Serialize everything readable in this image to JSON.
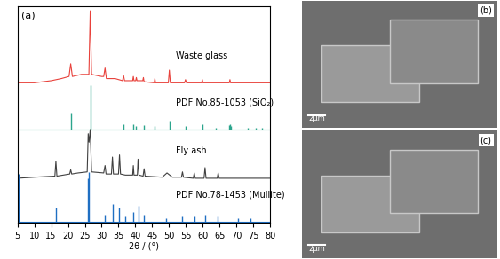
{
  "chart_data": {
    "type": "line",
    "panel_label": "(a)",
    "xlabel": "2θ / (°)",
    "xlim": [
      5,
      80
    ],
    "xticks": [
      5,
      10,
      15,
      20,
      25,
      30,
      35,
      40,
      45,
      50,
      55,
      60,
      65,
      70,
      75,
      80
    ],
    "ylim": [
      0,
      102
    ],
    "yticks": [],
    "tick_labels": "x",
    "grid": false,
    "series": [
      {
        "name": "Waste glass",
        "type": "line",
        "color": "#e8413b",
        "x": [
          5,
          10,
          15,
          18,
          20.3,
          20.8,
          21.3,
          24,
          26.2,
          26.6,
          27.0,
          30,
          30.6,
          31.0,
          31.4,
          34,
          36.2,
          36.5,
          36.8,
          39.2,
          39.4,
          39.6,
          40.1,
          40.3,
          40.5,
          42.2,
          42.4,
          42.6,
          45.6,
          45.8,
          46.0,
          49.8,
          50.1,
          50.4,
          54.6,
          54.9,
          55.2,
          59.7,
          59.9,
          60.1,
          64,
          67.9,
          68.1,
          68.3,
          75,
          80
        ],
        "values": [
          66,
          66,
          67,
          68,
          69,
          75,
          69,
          70,
          70,
          100,
          70,
          69,
          69,
          73,
          68,
          68,
          67,
          69.5,
          67,
          67,
          69,
          67,
          67,
          68.5,
          67,
          67,
          68.5,
          66.5,
          66,
          68,
          66,
          66,
          72,
          66,
          66,
          67.5,
          66,
          66,
          67.5,
          66,
          66,
          66,
          67.5,
          66,
          66,
          66
        ]
      },
      {
        "name": "PDF No.85-1053 (SiO₂)",
        "type": "stick",
        "color": "#2ca58d",
        "baseline": 44,
        "x": [
          20.86,
          26.64,
          36.54,
          39.47,
          40.29,
          42.45,
          45.79,
          50.14,
          54.87,
          59.96,
          64.03,
          67.74,
          68.14,
          68.3,
          73.47,
          75.66,
          77.67
        ],
        "values": [
          52,
          65,
          46.5,
          46.5,
          45.5,
          46,
          45.5,
          48,
          45.5,
          46.5,
          45,
          46,
          46.5,
          45.5,
          45,
          45,
          45
        ]
      },
      {
        "name": "Fly ash",
        "type": "line",
        "color": "#404040",
        "x": [
          5,
          10,
          16.1,
          16.4,
          16.7,
          20.5,
          20.8,
          21.1,
          23,
          25.7,
          26.0,
          26.25,
          26.6,
          27.0,
          30.6,
          31.0,
          31.3,
          32.9,
          33.2,
          33.5,
          35.0,
          35.3,
          35.6,
          37,
          39.2,
          39.4,
          39.6,
          40.6,
          40.8,
          41.1,
          42.3,
          42.6,
          42.9,
          48,
          49.4,
          51,
          53.7,
          54.0,
          54.3,
          57.2,
          57.5,
          57.8,
          60.4,
          60.7,
          61.0,
          64.3,
          64.6,
          64.9,
          70,
          80
        ],
        "values": [
          21,
          21.5,
          22,
          29,
          22,
          23,
          25,
          23,
          23.5,
          24,
          42,
          38,
          44,
          24,
          23.5,
          27,
          23,
          23,
          31,
          23,
          23,
          32,
          23,
          22.5,
          22.5,
          27,
          22.5,
          22.5,
          30,
          22.5,
          22,
          25.5,
          22,
          21.5,
          23.5,
          21.5,
          21.5,
          24,
          21.5,
          21,
          23.5,
          21,
          21,
          26,
          21,
          21,
          23.5,
          21,
          21,
          21
        ]
      },
      {
        "name": "PDF No.78-1453 (Mullite)",
        "type": "stick",
        "color": "#1f6fc2",
        "baseline": 0.5,
        "x": [
          5.3,
          16.43,
          25.97,
          26.27,
          30.96,
          33.23,
          35.28,
          37.0,
          39.26,
          40.87,
          42.6,
          49.0,
          53.9,
          57.6,
          60.7,
          64.5,
          70.5,
          74.2
        ],
        "values": [
          23,
          7,
          21,
          24,
          4,
          9,
          7,
          3,
          5,
          8,
          4,
          2,
          3,
          3,
          4,
          3,
          2,
          2
        ]
      }
    ]
  },
  "images": [
    {
      "panel_label": "(b)",
      "scale_bar": "2μm"
    },
    {
      "panel_label": "(c)",
      "scale_bar": "2μm"
    }
  ]
}
